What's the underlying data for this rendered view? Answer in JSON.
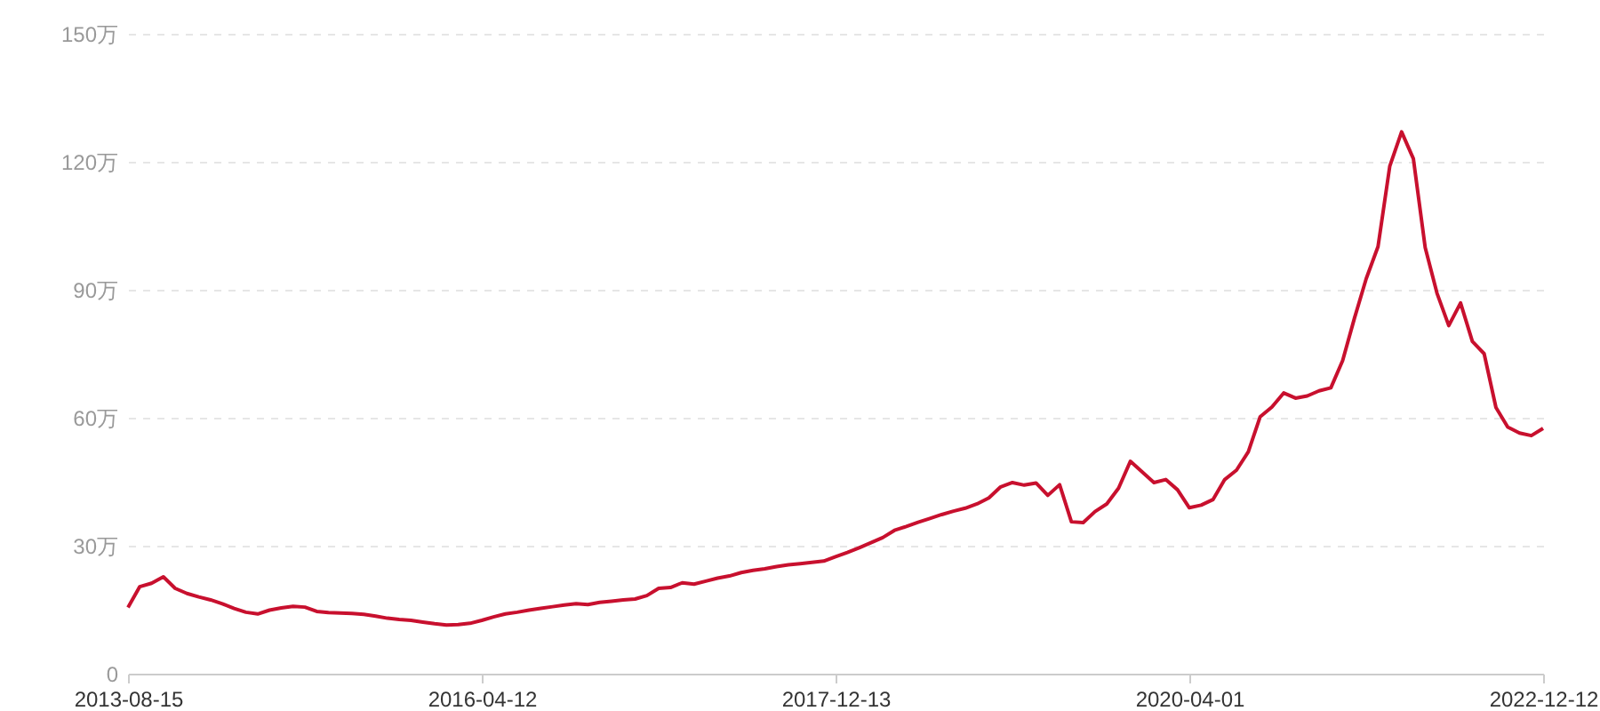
{
  "chart_data": {
    "type": "line",
    "categories": [
      "2013-08-15",
      null,
      null,
      null,
      null,
      null,
      null,
      null,
      null,
      null,
      null,
      null,
      null,
      null,
      null,
      null,
      null,
      null,
      null,
      null,
      null,
      null,
      null,
      null,
      null,
      null,
      null,
      null,
      null,
      null,
      "2016-04-12",
      null,
      null,
      null,
      null,
      null,
      null,
      null,
      null,
      null,
      null,
      null,
      null,
      null,
      null,
      null,
      null,
      null,
      null,
      null,
      null,
      null,
      null,
      null,
      null,
      null,
      null,
      null,
      null,
      null,
      "2017-12-13",
      null,
      null,
      null,
      null,
      null,
      null,
      null,
      null,
      null,
      null,
      null,
      null,
      null,
      null,
      null,
      null,
      null,
      null,
      null,
      null,
      null,
      null,
      null,
      null,
      null,
      null,
      null,
      null,
      null,
      "2020-04-01",
      null,
      null,
      null,
      null,
      null,
      null,
      null,
      null,
      null,
      null,
      null,
      null,
      null,
      null,
      null,
      null,
      null,
      null,
      null,
      null,
      null,
      null,
      null,
      null,
      null,
      null,
      null,
      null,
      null,
      "2022-12-12"
    ],
    "series": [
      {
        "color": "#c8102e",
        "values": [
          15.5,
          20.4,
          21.2,
          22.7,
          20.0,
          18.8,
          18.0,
          17.3,
          16.4,
          15.3,
          14.4,
          14.0,
          14.9,
          15.4,
          15.8,
          15.6,
          14.6,
          14.3,
          14.2,
          14.1,
          13.9,
          13.5,
          13.0,
          12.7,
          12.5,
          12.1,
          11.7,
          11.4,
          11.5,
          11.8,
          12.5,
          13.3,
          14.0,
          14.4,
          14.9,
          15.3,
          15.7,
          16.1,
          16.4,
          16.2,
          16.7,
          17.0,
          17.3,
          17.5,
          18.3,
          20.0,
          20.2,
          21.3,
          21.0,
          21.7,
          22.4,
          22.9,
          23.7,
          24.2,
          24.6,
          25.1,
          25.5,
          25.8,
          26.1,
          26.4,
          27.4,
          28.4,
          29.5,
          30.7,
          31.9,
          33.6,
          34.5,
          35.5,
          36.4,
          37.3,
          38.1,
          38.8,
          39.8,
          41.2,
          43.8,
          44.8,
          44.2,
          44.7,
          41.8,
          44.3,
          35.6,
          35.4,
          38.0,
          39.8,
          43.5,
          49.8,
          47.3,
          44.8,
          45.5,
          43.1,
          38.9,
          39.5,
          40.8,
          45.5,
          47.7,
          52.0,
          60.2,
          62.5,
          65.8,
          64.6,
          65.1,
          66.3,
          67.0,
          73.4,
          83.3,
          92.6,
          100.1,
          119.0,
          127.0,
          120.7,
          99.9,
          89.2,
          81.6,
          86.9,
          77.9,
          75.0,
          62.4,
          57.8,
          56.4,
          55.8,
          57.5
        ]
      }
    ],
    "ylim": [
      0,
      150
    ],
    "yticks": [
      0,
      {
        "value": 30,
        "label": "30万"
      },
      {
        "value": 60,
        "label": "60万"
      },
      {
        "value": 90,
        "label": "90万"
      },
      {
        "value": 120,
        "label": "120万"
      },
      {
        "value": 150,
        "label": "150万"
      }
    ],
    "grid": "y",
    "line_style": "solid"
  }
}
